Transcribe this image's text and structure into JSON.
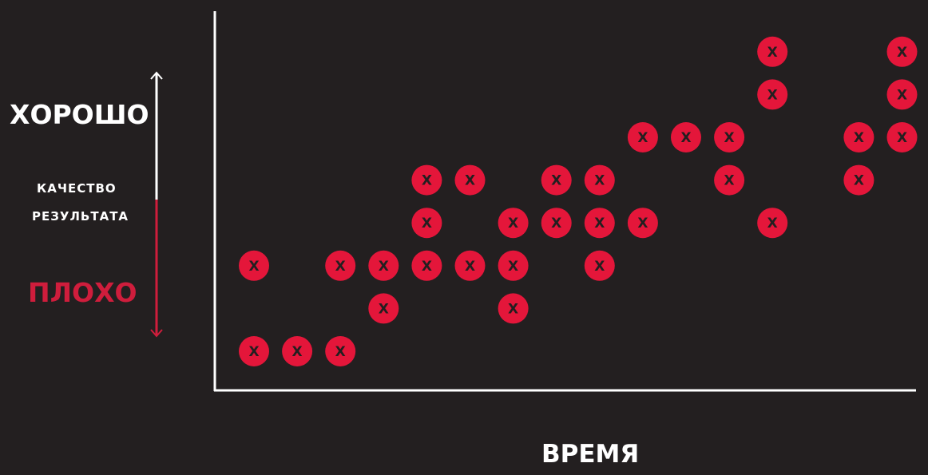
{
  "colors": {
    "background": "#231f20",
    "axis": "#ffffff",
    "mark": "#e4163a",
    "mark_text": "#231f20",
    "good": "#ffffff",
    "bad": "#cf1d3c"
  },
  "labels": {
    "good": "ХОРОШО",
    "bad": "ПЛОХО",
    "quality_line1": "КАЧЕСТВО",
    "quality_line2": "РЕЗУЛЬТАТА",
    "time": "ВРЕМЯ"
  },
  "chart_data": {
    "type": "scatter",
    "marker": "X",
    "xlabel": "ВРЕМЯ",
    "ylabel": "КАЧЕСТВО РЕЗУЛЬТАТА",
    "ylabel_top": "ХОРОШО",
    "ylabel_bottom": "ПЛОХО",
    "xlim": [
      0,
      16
    ],
    "ylim": [
      0,
      8
    ],
    "grid": false,
    "points": [
      {
        "x": 1,
        "y": 1
      },
      {
        "x": 1,
        "y": 3
      },
      {
        "x": 2,
        "y": 1
      },
      {
        "x": 3,
        "y": 1
      },
      {
        "x": 3,
        "y": 3
      },
      {
        "x": 4,
        "y": 2
      },
      {
        "x": 4,
        "y": 3
      },
      {
        "x": 5,
        "y": 3
      },
      {
        "x": 5,
        "y": 4
      },
      {
        "x": 5,
        "y": 5
      },
      {
        "x": 6,
        "y": 3
      },
      {
        "x": 6,
        "y": 5
      },
      {
        "x": 7,
        "y": 2
      },
      {
        "x": 7,
        "y": 3
      },
      {
        "x": 7,
        "y": 4
      },
      {
        "x": 8,
        "y": 4
      },
      {
        "x": 8,
        "y": 5
      },
      {
        "x": 9,
        "y": 3
      },
      {
        "x": 9,
        "y": 4
      },
      {
        "x": 9,
        "y": 5
      },
      {
        "x": 10,
        "y": 4
      },
      {
        "x": 10,
        "y": 6
      },
      {
        "x": 11,
        "y": 6
      },
      {
        "x": 12,
        "y": 5
      },
      {
        "x": 12,
        "y": 6
      },
      {
        "x": 13,
        "y": 4
      },
      {
        "x": 13,
        "y": 7
      },
      {
        "x": 13,
        "y": 8
      },
      {
        "x": 15,
        "y": 5
      },
      {
        "x": 15,
        "y": 6
      },
      {
        "x": 16,
        "y": 6
      },
      {
        "x": 16,
        "y": 7
      },
      {
        "x": 16,
        "y": 8
      }
    ]
  }
}
